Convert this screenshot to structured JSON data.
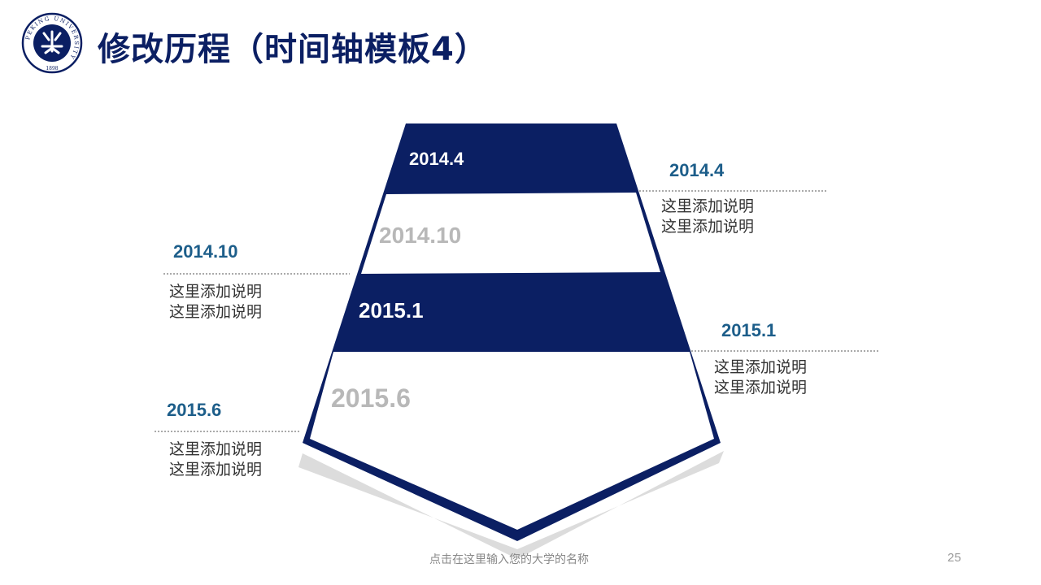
{
  "slide": {
    "title": "修改历程（时间轴模板4）",
    "logo": {
      "icon": "peking-university-seal-icon",
      "ring_text": "PEKING UNIVERSITY",
      "year": "1898"
    },
    "bands": [
      {
        "label": "2014.4",
        "style": "dark"
      },
      {
        "label": "2014.10",
        "style": "light"
      },
      {
        "label": "2015.1",
        "style": "dark"
      },
      {
        "label": "2015.6",
        "style": "light"
      }
    ],
    "events": [
      {
        "date": "2014.4",
        "lines": [
          "这里添加说明",
          "这里添加说明"
        ]
      },
      {
        "date": "2014.10",
        "lines": [
          "这里添加说明",
          "这里添加说明"
        ]
      },
      {
        "date": "2015.1",
        "lines": [
          "这里添加说明",
          "这里添加说明"
        ]
      },
      {
        "date": "2015.6",
        "lines": [
          "这里添加说明",
          "这里添加说明"
        ]
      }
    ],
    "footer": "点击在这里输入您的大学的名称",
    "page_number": "25"
  },
  "colors": {
    "navy": "#0b1f63",
    "date_blue": "#1d5e8a",
    "light_label": "#b8b8b8",
    "shadow": "#dcdcdc"
  }
}
